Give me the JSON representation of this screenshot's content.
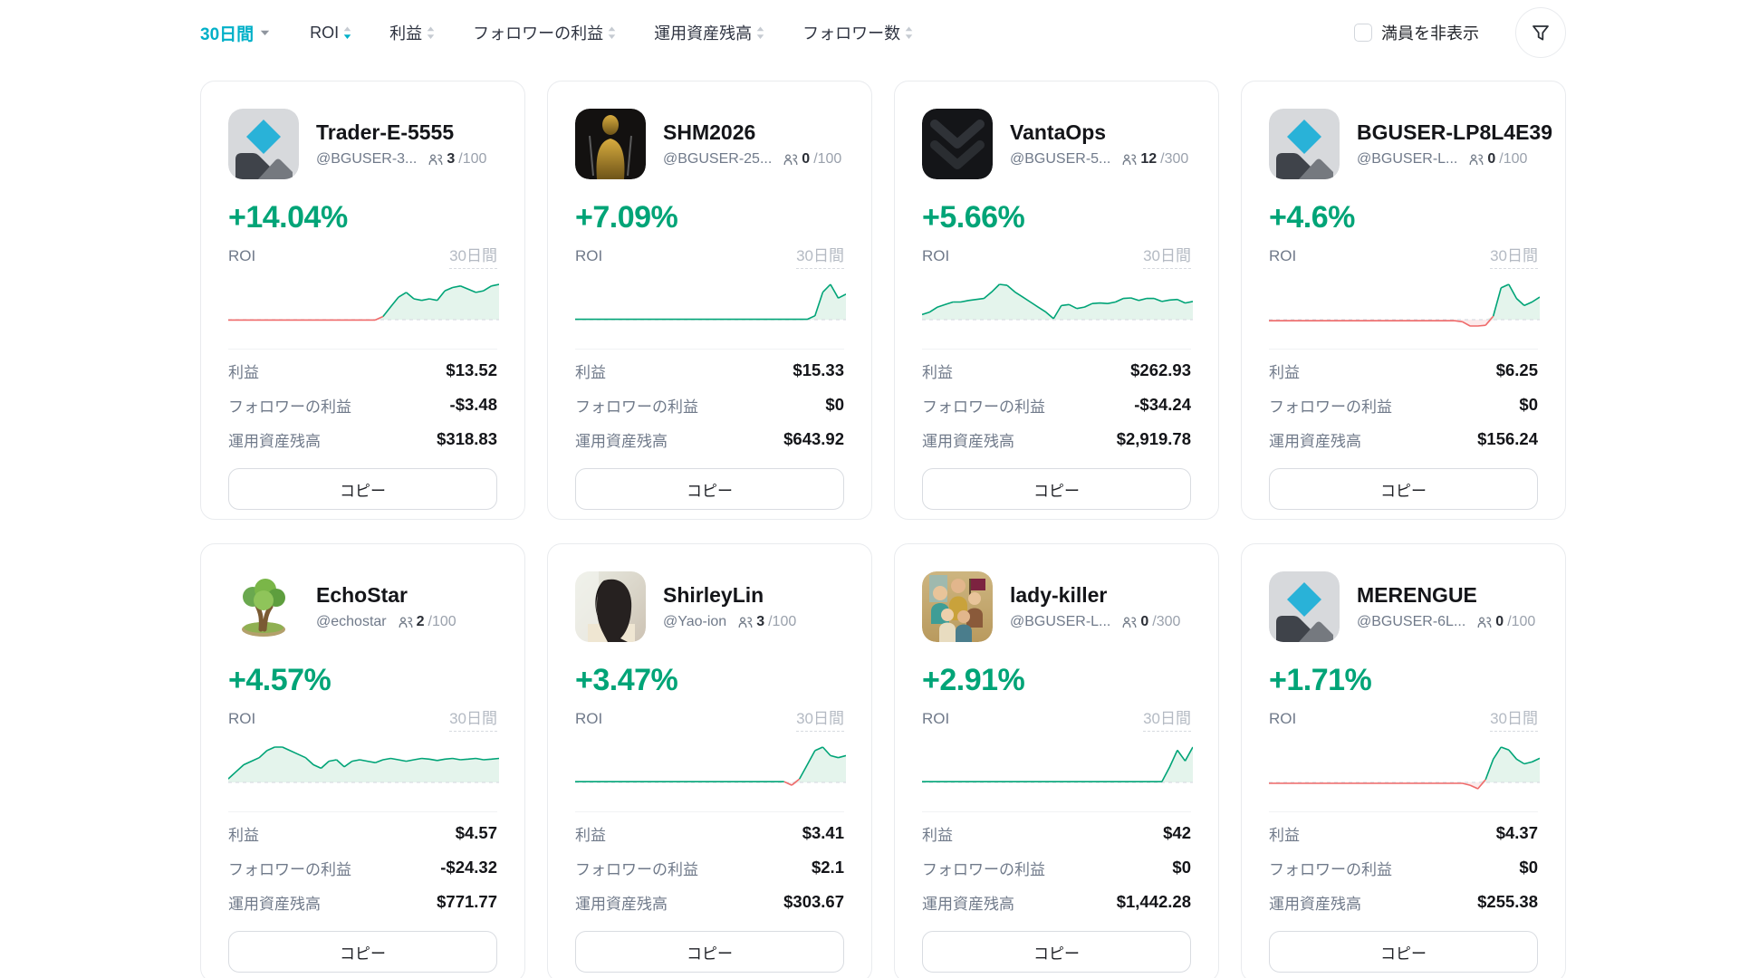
{
  "toolbar": {
    "period_label": "30日間",
    "sorts": [
      {
        "key": "roi",
        "label": "ROI",
        "active_desc": true
      },
      {
        "key": "profit",
        "label": "利益",
        "active_desc": false
      },
      {
        "key": "follower-profit",
        "label": "フォロワーの利益",
        "active_desc": false
      },
      {
        "key": "aum",
        "label": "運用資産残高",
        "active_desc": false
      },
      {
        "key": "followers",
        "label": "フォロワー数",
        "active_desc": false
      }
    ],
    "hide_full_label": "満員を非表示",
    "hide_full_checked": false
  },
  "card_labels": {
    "roi": "ROI",
    "period": "30日間",
    "profit": "利益",
    "follower_profit": "フォロワーの利益",
    "aum": "運用資産残高",
    "copy": "コピー"
  },
  "colors": {
    "accent_teal": "#00b0c8",
    "green": "#00a477",
    "green_fill": "#e4f4ec",
    "red": "#ef6a6a",
    "red_fill": "#fcebec",
    "baseline": "#d9dde3"
  },
  "cards": [
    {
      "name": "Trader-E-5555",
      "handle": "@BGUSER-3...",
      "capacity": {
        "current": "3",
        "max": "100"
      },
      "roi": "+14.04%",
      "profit": "$13.52",
      "follower_profit": "-$3.48",
      "aum": "$318.83",
      "avatar": "placeholder",
      "sparkline": {
        "values": [
          -0.1,
          -0.1,
          -0.1,
          -0.1,
          -0.1,
          -0.1,
          -0.1,
          -0.1,
          -0.1,
          -0.1,
          -0.1,
          -0.1,
          -0.1,
          -0.1,
          -0.1,
          -0.1,
          -0.1,
          -0.1,
          -0.1,
          -0.1,
          1,
          4,
          7,
          8.5,
          6.5,
          6,
          6.5,
          6,
          9,
          10,
          10.5,
          9.5,
          8.5,
          9,
          10.5,
          11
        ]
      }
    },
    {
      "name": "SHM2026",
      "handle": "@BGUSER-25...",
      "capacity": {
        "current": "0",
        "max": "100"
      },
      "roi": "+7.09%",
      "profit": "$15.33",
      "follower_profit": "$0",
      "aum": "$643.92",
      "avatar": "gold-statue",
      "sparkline": {
        "values": [
          0.1,
          0.1,
          0.1,
          0.1,
          0.1,
          0.1,
          0.1,
          0.1,
          0.1,
          0.1,
          0.1,
          0.1,
          0.1,
          0.1,
          0.1,
          0.1,
          0.1,
          0.1,
          0.1,
          0.1,
          0.1,
          0.1,
          0.1,
          0.1,
          0.1,
          0.1,
          0.1,
          0.1,
          0.1,
          0.1,
          0.1,
          1,
          7,
          9,
          5.5,
          6.5
        ]
      }
    },
    {
      "name": "VantaOps",
      "handle": "@BGUSER-5...",
      "capacity": {
        "current": "12",
        "max": "300"
      },
      "roi": "+5.66%",
      "profit": "$262.93",
      "follower_profit": "-$34.24",
      "aum": "$2,919.78",
      "avatar": "chevron-dark",
      "sparkline": {
        "values": [
          1,
          1.5,
          2.5,
          3,
          3.5,
          3.5,
          3.8,
          4,
          4.2,
          5.5,
          7,
          6.8,
          5.5,
          4.5,
          3.5,
          2.5,
          1.5,
          0.2,
          2.8,
          3,
          2.2,
          2.5,
          3.2,
          3.3,
          3.2,
          3.5,
          4.2,
          4.3,
          3.8,
          4.2,
          4.2,
          3.6,
          3.9,
          4,
          3.3,
          3.6
        ]
      }
    },
    {
      "name": "BGUSER-LP8L4E39",
      "handle": "@BGUSER-L...",
      "capacity": {
        "current": "0",
        "max": "100"
      },
      "roi": "+4.6%",
      "profit": "$6.25",
      "follower_profit": "$0",
      "aum": "$156.24",
      "avatar": "placeholder",
      "sparkline": {
        "values": [
          -0.15,
          -0.15,
          -0.15,
          -0.15,
          -0.15,
          -0.15,
          -0.15,
          -0.15,
          -0.15,
          -0.15,
          -0.15,
          -0.15,
          -0.15,
          -0.15,
          -0.15,
          -0.15,
          -0.15,
          -0.15,
          -0.15,
          -0.15,
          -0.15,
          -0.15,
          -0.15,
          -0.15,
          -0.15,
          -0.3,
          -1.2,
          -1.5,
          -0.8,
          0.5,
          4.5,
          5,
          3,
          2,
          2.5,
          3.2
        ]
      }
    },
    {
      "name": "EchoStar",
      "handle": "@echostar",
      "capacity": {
        "current": "2",
        "max": "100"
      },
      "roi": "+4.57%",
      "profit": "$4.57",
      "follower_profit": "-$24.32",
      "aum": "$771.77",
      "avatar": "tree",
      "sparkline": {
        "values": [
          0.5,
          1.5,
          2.5,
          3,
          3.5,
          4.5,
          5,
          5,
          4.5,
          4,
          3.5,
          2.5,
          2,
          3,
          3.2,
          2.2,
          3,
          3.2,
          3,
          2.8,
          3.2,
          3.4,
          3.2,
          3,
          3.2,
          3.4,
          3.3,
          3.1,
          3.3,
          3.4,
          3.2,
          3.3,
          3.4,
          3.2,
          3.3,
          3.4
        ]
      }
    },
    {
      "name": "ShirleyLin",
      "handle": "@Yao-ion",
      "capacity": {
        "current": "3",
        "max": "100"
      },
      "roi": "+3.47%",
      "profit": "$3.41",
      "follower_profit": "$2.1",
      "aum": "$303.67",
      "avatar": "woman-photo",
      "sparkline": {
        "values": [
          0.1,
          0.1,
          0.1,
          0.1,
          0.1,
          0.1,
          0.1,
          0.1,
          0.1,
          0.1,
          0.1,
          0.1,
          0.1,
          0.1,
          0.1,
          0.1,
          0.1,
          0.1,
          0.1,
          0.1,
          0.1,
          0.1,
          0.1,
          0.1,
          0.1,
          0.1,
          0.1,
          0.1,
          -0.4,
          0.5,
          2.5,
          4.5,
          5,
          3.8,
          3.5,
          3.8
        ]
      }
    },
    {
      "name": "lady-killer",
      "handle": "@BGUSER-L...",
      "capacity": {
        "current": "0",
        "max": "300"
      },
      "roi": "+2.91%",
      "profit": "$42",
      "follower_profit": "$0",
      "aum": "$1,442.28",
      "avatar": "group-art",
      "sparkline": {
        "values": [
          0.1,
          0.1,
          0.1,
          0.1,
          0.1,
          0.1,
          0.1,
          0.1,
          0.1,
          0.1,
          0.1,
          0.1,
          0.1,
          0.1,
          0.1,
          0.1,
          0.1,
          0.1,
          0.1,
          0.1,
          0.1,
          0.1,
          0.1,
          0.1,
          0.1,
          0.1,
          0.1,
          0.1,
          0.1,
          0.1,
          0.1,
          0.1,
          2,
          4.2,
          2.8,
          4.6
        ]
      }
    },
    {
      "name": "MERENGUE",
      "handle": "@BGUSER-6L...",
      "capacity": {
        "current": "0",
        "max": "100"
      },
      "roi": "+1.71%",
      "profit": "$4.37",
      "follower_profit": "$0",
      "aum": "$255.38",
      "avatar": "placeholder",
      "sparkline": {
        "values": [
          -0.1,
          -0.1,
          -0.1,
          -0.1,
          -0.1,
          -0.1,
          -0.1,
          -0.1,
          -0.1,
          -0.1,
          -0.1,
          -0.1,
          -0.1,
          -0.1,
          -0.1,
          -0.1,
          -0.1,
          -0.1,
          -0.1,
          -0.1,
          -0.1,
          -0.1,
          -0.1,
          -0.1,
          -0.1,
          -0.1,
          -0.3,
          -0.8,
          0.3,
          2.5,
          3.8,
          3.5,
          2.5,
          2,
          2.2,
          2.6
        ]
      }
    }
  ]
}
